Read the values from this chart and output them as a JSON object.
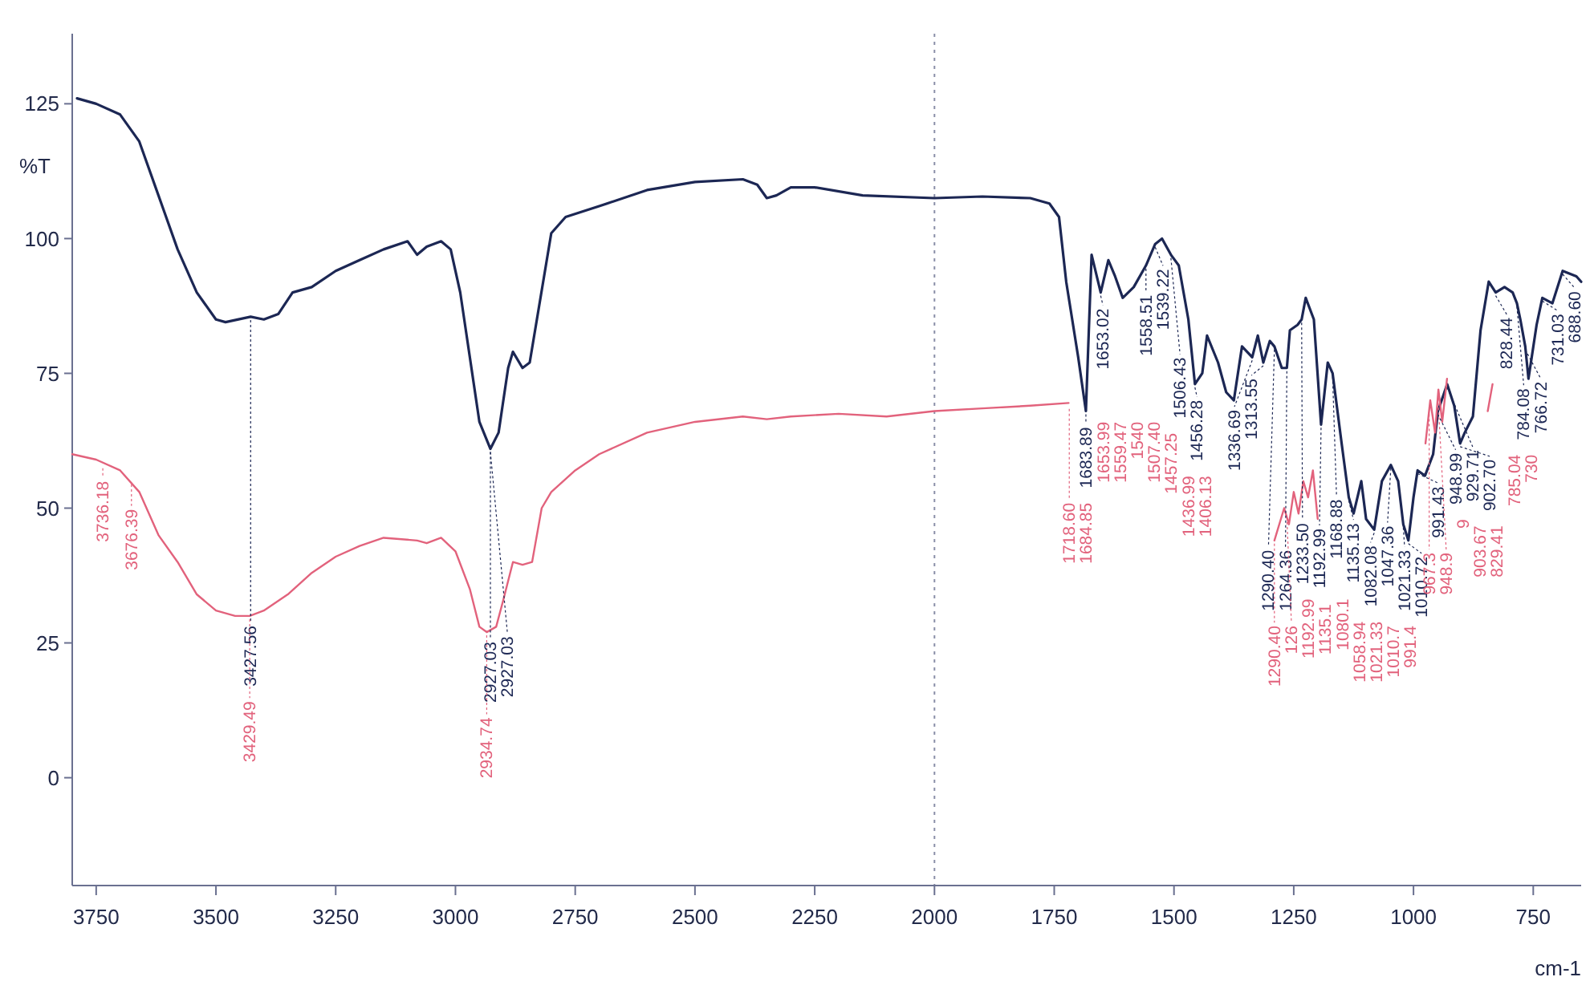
{
  "chart_data": {
    "type": "line",
    "xlabel": "cm-1",
    "ylabel": "%T",
    "xlim": [
      3800,
      650
    ],
    "xticks": [
      3750,
      3500,
      3250,
      3000,
      2750,
      2500,
      2250,
      2000,
      1750,
      1500,
      1250,
      1000,
      750
    ],
    "ylim": [
      -20,
      138
    ],
    "yticks": [
      0,
      25,
      50,
      75,
      100,
      125
    ],
    "grid": false,
    "marker": "none",
    "line_style": "solid",
    "ref_lines": [
      {
        "axis": "x",
        "value": 2000,
        "color": "#8a8fa8",
        "line_style": "dotted"
      }
    ],
    "series": [
      {
        "color": "#1c2754",
        "x": [
          3790,
          3750,
          3700,
          3660,
          3620,
          3580,
          3540,
          3500,
          3480,
          3427.56,
          3400,
          3370,
          3340,
          3300,
          3250,
          3200,
          3150,
          3100,
          3080,
          3060,
          3030,
          3010,
          2990,
          2970,
          2950,
          2927.03,
          2910,
          2890,
          2880,
          2860,
          2845,
          2830,
          2800,
          2770,
          2700,
          2600,
          2500,
          2400,
          2370,
          2350,
          2330,
          2300,
          2250,
          2150,
          2000,
          1900,
          1800,
          1760,
          1740,
          1725,
          1700,
          1683.89,
          1672,
          1653.02,
          1637,
          1623,
          1607,
          1584,
          1558.51,
          1539.22,
          1525,
          1506.43,
          1490,
          1470,
          1456.28,
          1441,
          1431,
          1408,
          1391,
          1375,
          1358,
          1336.69,
          1325,
          1313.55,
          1300,
          1290.4,
          1275,
          1264.36,
          1258,
          1242,
          1233.5,
          1225,
          1208,
          1192.99,
          1179,
          1168.88,
          1150,
          1135.13,
          1125,
          1109,
          1099,
          1082.08,
          1066,
          1047.36,
          1032,
          1021.33,
          1010.72,
          1000,
          991.43,
          976,
          959,
          948.99,
          929.71,
          915,
          902.7,
          893,
          876,
          860,
          843,
          828.44,
          810,
          793,
          784.08,
          777,
          766.72,
          760,
          743,
          731.03,
          710,
          688.6,
          660,
          650
        ],
        "values": [
          126,
          125,
          123,
          118,
          108,
          98,
          90,
          85,
          84.5,
          85.5,
          85,
          86,
          90,
          91,
          94,
          96,
          98,
          99.5,
          97,
          98.5,
          99.5,
          98,
          90,
          78,
          66,
          61,
          64,
          76,
          79,
          76,
          77,
          85,
          101,
          104,
          106,
          109,
          110.5,
          111,
          110,
          107.5,
          108,
          109.5,
          109.5,
          108,
          107.5,
          107.8,
          107.5,
          106.5,
          104,
          92,
          78,
          68,
          97,
          90,
          96,
          93,
          89,
          91,
          95,
          99,
          100,
          97,
          95,
          85,
          73,
          75,
          82,
          77,
          71.5,
          70,
          80,
          78,
          82,
          77,
          81,
          80,
          76,
          76,
          83,
          84,
          85,
          89,
          85,
          65.5,
          77,
          75,
          62,
          52,
          49,
          55,
          48,
          46,
          55,
          58,
          55,
          47,
          44,
          52,
          57,
          56,
          60,
          68,
          73,
          69,
          62,
          64,
          67,
          83,
          92,
          90,
          91,
          90,
          88,
          85,
          80,
          74,
          84,
          89,
          88,
          94,
          93,
          92
        ]
      },
      {
        "color": "#e2627c",
        "x": [
          3800,
          3750,
          3700,
          3660,
          3620,
          3580,
          3540,
          3500,
          3460,
          3429.49,
          3400,
          3350,
          3300,
          3250,
          3200,
          3150,
          3080,
          3060,
          3030,
          3000,
          2970,
          2950,
          2934.74,
          2915,
          2900,
          2880,
          2860,
          2840,
          2820,
          2800,
          2750,
          2700,
          2600,
          2500,
          2400,
          2350,
          2300,
          2200,
          2100,
          2000,
          1900,
          1800,
          1720,
          1700,
          1290.4,
          1270,
          1260,
          1250,
          1240,
          1230,
          1220,
          1210,
          1200,
          1190,
          975,
          965,
          955,
          948,
          940,
          930,
          920,
          845,
          835
        ],
        "values": [
          60,
          59,
          57,
          53,
          45,
          40,
          34,
          31,
          30,
          30,
          31,
          34,
          38,
          41,
          43,
          44.5,
          44,
          43.5,
          44.5,
          42,
          35,
          28,
          27,
          28,
          33,
          40,
          39.5,
          40,
          50,
          53,
          57,
          60,
          64,
          66,
          67,
          66.5,
          67,
          67.5,
          67,
          68,
          68.5,
          69,
          69.5,
          null,
          44,
          50,
          47,
          53,
          49,
          55,
          52,
          57,
          48,
          null,
          62,
          70,
          64,
          72,
          66,
          74,
          null,
          68,
          73
        ]
      }
    ],
    "annotations": [
      {
        "text": "3427.56",
        "x": 3427.56,
        "y": 85.5
      },
      {
        "text": "2927.03",
        "x": 2927.03,
        "y": 61
      },
      {
        "text": "2927.03",
        "x": 2927.03,
        "y": 61
      },
      {
        "text": "1683.89",
        "x": 1683.89,
        "y": 68
      },
      {
        "text": "1653.02",
        "x": 1653.02,
        "y": 90
      },
      {
        "text": "1558.51",
        "x": 1558.51,
        "y": 95
      },
      {
        "text": "1539.22",
        "x": 1539.22,
        "y": 99
      },
      {
        "text": "1506.43",
        "x": 1506.43,
        "y": 97
      },
      {
        "text": "1456.28",
        "x": 1456.28,
        "y": 73
      },
      {
        "text": "1336.69",
        "x": 1336.69,
        "y": 78
      },
      {
        "text": "1313.55",
        "x": 1313.55,
        "y": 77
      },
      {
        "text": "1290.40",
        "x": 1290.4,
        "y": 80
      },
      {
        "text": "1264.36",
        "x": 1264.36,
        "y": 76
      },
      {
        "text": "1233.50",
        "x": 1233.5,
        "y": 85
      },
      {
        "text": "1192.99",
        "x": 1192.99,
        "y": 65.5
      },
      {
        "text": "1168.88",
        "x": 1168.88,
        "y": 75
      },
      {
        "text": "1135.13",
        "x": 1135.13,
        "y": 52
      },
      {
        "text": "1082.08",
        "x": 1082.08,
        "y": 46
      },
      {
        "text": "1047.36",
        "x": 1047.36,
        "y": 58
      },
      {
        "text": "1021.33",
        "x": 1021.33,
        "y": 47
      },
      {
        "text": "1010.72",
        "x": 1010.72,
        "y": 44
      },
      {
        "text": "991.43",
        "x": 991.43,
        "y": 57
      },
      {
        "text": "948.99",
        "x": 948.99,
        "y": 68
      },
      {
        "text": "929.71",
        "x": 929.71,
        "y": 73
      },
      {
        "text": "902.70",
        "x": 902.7,
        "y": 62
      },
      {
        "text": "828.44",
        "x": 828.44,
        "y": 90
      },
      {
        "text": "784.08",
        "x": 784.08,
        "y": 88
      },
      {
        "text": "766.72",
        "x": 766.72,
        "y": 80
      },
      {
        "text": "731.03",
        "x": 731.03,
        "y": 89
      },
      {
        "text": "688.60",
        "x": 688.6,
        "y": 94
      },
      {
        "text": "3736.18",
        "x": 3736.18,
        "y": 58
      },
      {
        "text": "3676.39",
        "x": 3676.39,
        "y": 55
      },
      {
        "text": "3429.49",
        "x": 3429.49,
        "y": 30
      },
      {
        "text": "2934.74",
        "x": 2934.74,
        "y": 27
      },
      {
        "text": "1718.60",
        "x": 1718.6,
        "y": 69
      },
      "1684.85",
      "1653.99",
      "1559.47",
      "1540",
      "1507.40",
      "1457.25",
      "1436.99",
      "1406.13",
      {
        "text": "1290.40",
        "x": 1290.4,
        "y": 44
      },
      {
        "text": "126",
        "x": 1264,
        "y": 48
      },
      "1192.99",
      "1135.1",
      "1080.1",
      "1058.94",
      "1021.33",
      "1010.7",
      "991.4",
      {
        "text": "967.3",
        "x": 967.3,
        "y": 68
      },
      {
        "text": "948.9",
        "x": 948.9,
        "y": 71
      },
      "9",
      "903.67",
      "829.41",
      "785.04",
      "730"
    ]
  }
}
